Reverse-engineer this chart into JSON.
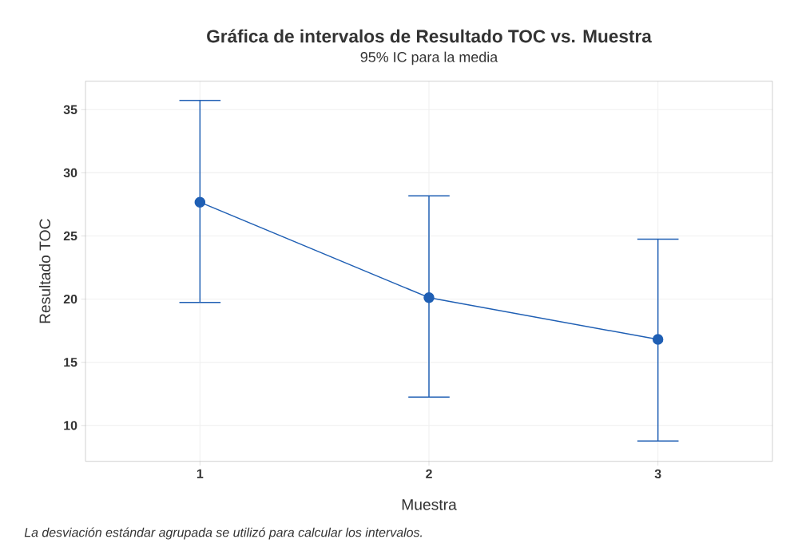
{
  "chart_data": {
    "type": "line",
    "title": "Gráfica de intervalos de Resultado TOC vs. Muestra",
    "subtitle": "95% IC para la media",
    "xlabel": "Muestra",
    "ylabel": "Resultado TOC",
    "categories": [
      "1",
      "2",
      "3"
    ],
    "series": [
      {
        "color": "#1f5fb4",
        "values": [
          27.67,
          20.12,
          16.81
        ],
        "errors": [
          [
            19.74,
            35.73
          ],
          [
            12.24,
            28.17
          ],
          [
            8.77,
            24.74
          ]
        ]
      }
    ],
    "ylim": [
      7.16,
      37.25
    ],
    "yticks": [
      10,
      15,
      20,
      25,
      30,
      35
    ],
    "grid": true,
    "marker": "circle",
    "line_style": "solid",
    "annotations": [
      "La desviación estándar agrupada se utilizó para calcular los intervalos."
    ]
  }
}
